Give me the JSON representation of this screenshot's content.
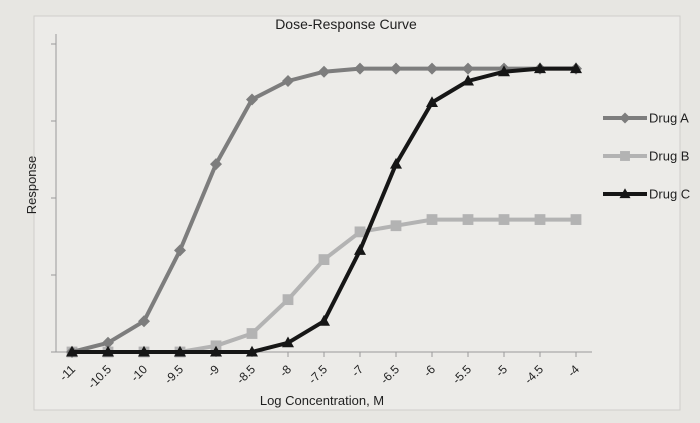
{
  "chart_data": {
    "type": "line",
    "title": "Dose-Response Curve",
    "xlabel": "Log Concentration, M",
    "ylabel": "Response",
    "x": [
      -11,
      -10.5,
      -10,
      -9.5,
      -9,
      -8.5,
      -8,
      -7.5,
      -7,
      -6.5,
      -6,
      -5.5,
      -5,
      -4.5,
      -4
    ],
    "x_tick_labels": [
      "-11",
      "-10.5",
      "-10",
      "-9.5",
      "-9",
      "-8.5",
      "-8",
      "-7.5",
      "-7",
      "-6.5",
      "-6",
      "-5.5",
      "-5",
      "-4.5",
      "-4"
    ],
    "ylim": [
      0,
      100
    ],
    "y_ticks": [
      0,
      25,
      50,
      75,
      100
    ],
    "grid": false,
    "legend_position": "right",
    "series": [
      {
        "name": "Drug A",
        "color": "#7d7d7d",
        "marker": "diamond",
        "values": [
          0,
          3,
          10,
          33,
          61,
          82,
          88,
          91,
          92,
          92,
          92,
          92,
          92,
          92,
          92
        ]
      },
      {
        "name": "Drug B",
        "color": "#b3b3b3",
        "marker": "square",
        "values": [
          0,
          0,
          0,
          0,
          2,
          6,
          17,
          30,
          39,
          41,
          43,
          43,
          43,
          43,
          43
        ]
      },
      {
        "name": "Drug C",
        "color": "#161616",
        "marker": "triangle",
        "values": [
          0,
          0,
          0,
          0,
          0,
          0,
          3,
          10,
          33,
          61,
          81,
          88,
          91,
          92,
          92
        ]
      }
    ]
  }
}
